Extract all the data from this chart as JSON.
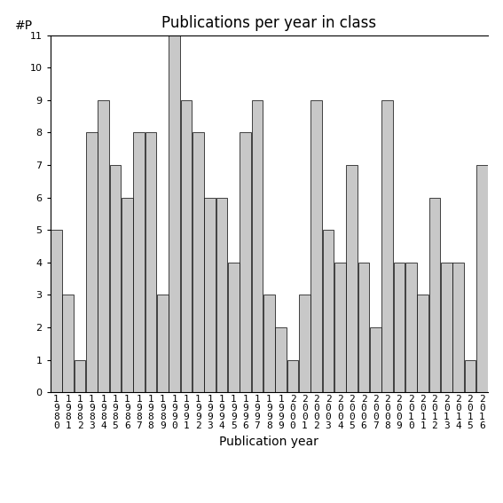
{
  "years": [
    1980,
    1981,
    1982,
    1983,
    1984,
    1985,
    1986,
    1987,
    1988,
    1989,
    1990,
    1991,
    1992,
    1993,
    1994,
    1995,
    1996,
    1997,
    1998,
    1999,
    2000,
    2001,
    2002,
    2003,
    2004,
    2005,
    2006,
    2007,
    2008,
    2009,
    2010,
    2011,
    2012,
    2013,
    2014,
    2015,
    2016
  ],
  "values": [
    5,
    3,
    1,
    8,
    9,
    7,
    6,
    8,
    8,
    3,
    11,
    9,
    8,
    6,
    6,
    4,
    8,
    9,
    3,
    2,
    1,
    3,
    9,
    5,
    4,
    7,
    4,
    2,
    9,
    4,
    4,
    3,
    6,
    4,
    4,
    1,
    7
  ],
  "bar_color": "#c8c8c8",
  "bar_edgecolor": "#000000",
  "title": "Publications per year in class",
  "xlabel": "Publication year",
  "ylabel": "#P",
  "ylim": [
    0,
    11
  ],
  "yticks": [
    0,
    1,
    2,
    3,
    4,
    5,
    6,
    7,
    8,
    9,
    10,
    11
  ],
  "title_fontsize": 12,
  "label_fontsize": 10,
  "tick_fontsize": 8,
  "background_color": "#ffffff"
}
